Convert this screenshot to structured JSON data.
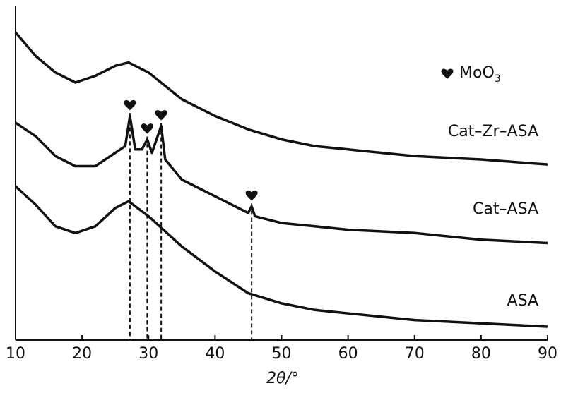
{
  "chart_data": {
    "type": "line",
    "x_label": "2θ/°",
    "legend_marker_text": [
      "MoO",
      "3"
    ],
    "xlim": [
      10,
      90
    ],
    "xticks": [
      10,
      20,
      30,
      40,
      50,
      60,
      70,
      80,
      90
    ],
    "ylim": [
      0,
      100
    ],
    "peaks": [
      27.2,
      29.8,
      31.9,
      45.5
    ],
    "peak_series": 1,
    "series": [
      {
        "name": "Cat–Zr–ASA",
        "color": "#111111",
        "x": [
          10,
          13,
          16,
          19,
          22,
          25,
          27,
          30,
          35,
          40,
          45,
          50,
          55,
          60,
          70,
          80,
          90
        ],
        "values": [
          92,
          85,
          80,
          77,
          79,
          82,
          83,
          80,
          72,
          67,
          63,
          60,
          58,
          57,
          55,
          54,
          52.5
        ]
      },
      {
        "name": "Cat–ASA",
        "color": "#111111",
        "x": [
          10,
          13,
          16,
          19,
          22,
          25,
          26.5,
          27.2,
          28,
          29,
          29.8,
          30.5,
          31.9,
          32.5,
          35,
          40,
          45,
          45.5,
          46,
          50,
          55,
          60,
          70,
          80,
          90
        ],
        "values": [
          65,
          61,
          55,
          52,
          52,
          56,
          58,
          67,
          57,
          57,
          60,
          56,
          64,
          54,
          48,
          43,
          38,
          40,
          37,
          35,
          34,
          33,
          32,
          30,
          29
        ]
      },
      {
        "name": "ASA",
        "color": "#111111",
        "x": [
          10,
          13,
          16,
          19,
          22,
          25,
          27,
          30,
          35,
          40,
          45,
          50,
          55,
          60,
          70,
          80,
          90
        ],
        "values": [
          46,
          40.5,
          34,
          32,
          34,
          39.5,
          41.5,
          37,
          28,
          20.5,
          14,
          11,
          9,
          8,
          6,
          5,
          4
        ]
      }
    ]
  }
}
